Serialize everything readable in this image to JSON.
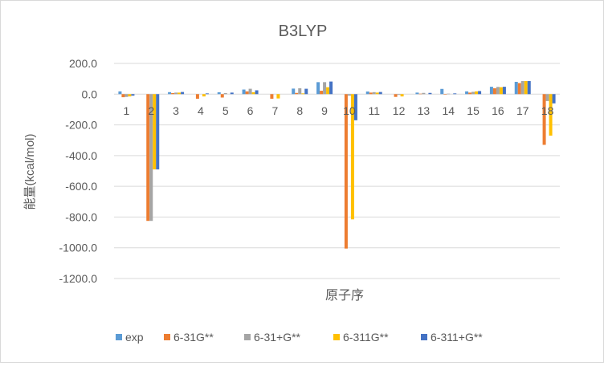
{
  "chart_data": {
    "type": "bar",
    "title": "B3LYP",
    "xlabel": "原子序",
    "ylabel": "能量(kcal/mol)",
    "ylim": [
      -1200,
      200
    ],
    "yticks": [
      "200.0",
      "0.0",
      "-200.0",
      "-400.0",
      "-600.0",
      "-800.0",
      "-1000.0",
      "-1200.0"
    ],
    "categories": [
      "1",
      "2",
      "3",
      "4",
      "5",
      "6",
      "7",
      "8",
      "9",
      "10",
      "11",
      "12",
      "13",
      "14",
      "15",
      "16",
      "17",
      "18"
    ],
    "grid": true,
    "legend_position": "bottom",
    "series": [
      {
        "name": "exp",
        "color": "#5b9bd5",
        "values": [
          18,
          0,
          13,
          0,
          12,
          30,
          0,
          36,
          78,
          0,
          17,
          0,
          10,
          34,
          18,
          48,
          80,
          0
        ]
      },
      {
        "name": "6-31G**",
        "color": "#ed7d31",
        "values": [
          -20,
          -825,
          7,
          -30,
          -22,
          18,
          -30,
          8,
          22,
          -1005,
          10,
          -18,
          3,
          -3,
          10,
          38,
          72,
          -330
        ]
      },
      {
        "name": "6-31+G**",
        "color": "#a5a5a5",
        "values": [
          -18,
          -825,
          10,
          0,
          7,
          35,
          0,
          38,
          78,
          -10,
          13,
          -5,
          8,
          3,
          15,
          47,
          85,
          -45
        ]
      },
      {
        "name": "6-311G**",
        "color": "#ffc000",
        "values": [
          -15,
          -490,
          10,
          -15,
          0,
          12,
          -28,
          5,
          45,
          -815,
          10,
          -15,
          0,
          0,
          18,
          45,
          85,
          -270
        ]
      },
      {
        "name": "6-311+G**",
        "color": "#4472c4",
        "values": [
          -10,
          -490,
          14,
          5,
          10,
          25,
          0,
          35,
          82,
          -170,
          14,
          0,
          8,
          5,
          20,
          48,
          85,
          -60
        ]
      }
    ]
  }
}
